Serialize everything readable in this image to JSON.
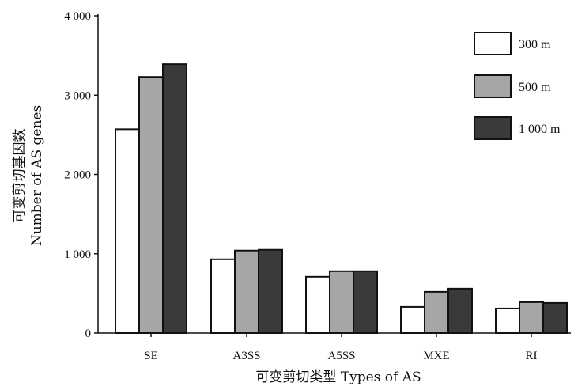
{
  "chart_data": {
    "type": "bar",
    "categories": [
      "SE",
      "A3SS",
      "A5SS",
      "MXE",
      "RI"
    ],
    "series": [
      {
        "name": "300 m",
        "values": [
          2570,
          930,
          710,
          330,
          310
        ],
        "color": "#ffffff"
      },
      {
        "name": "500 m",
        "values": [
          3230,
          1040,
          780,
          520,
          390
        ],
        "color": "#a6a6a6"
      },
      {
        "name": "1 000 m",
        "values": [
          3390,
          1050,
          780,
          560,
          380
        ],
        "color": "#3a3a3a"
      }
    ],
    "ylim": [
      0,
      4000
    ],
    "yticks": [
      0,
      1000,
      2000,
      3000,
      4000
    ],
    "ytick_labels": [
      "0",
      "1 000",
      "2 000",
      "3 000",
      "4 000"
    ],
    "xlabel": "可变剪切类型  Types of AS",
    "ylabel_line1": "可变剪切基因数",
    "ylabel_line2": "Number of AS genes",
    "legend_position": "top-right",
    "grid": false
  }
}
